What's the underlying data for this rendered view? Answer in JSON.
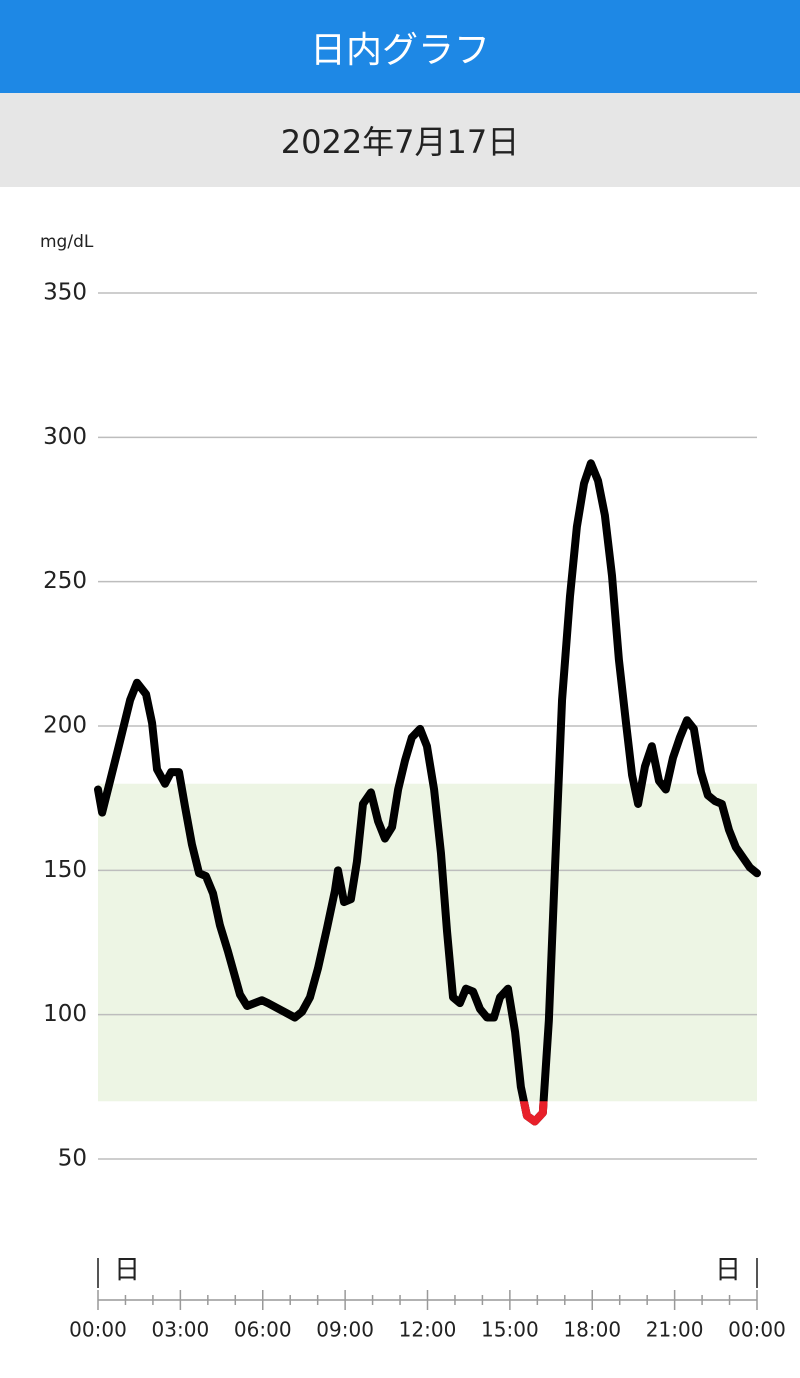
{
  "header": {
    "title": "日内グラフ",
    "date": "2022年7月17日"
  },
  "chart_data": {
    "type": "line",
    "y_label": "mg/dL",
    "x": [
      0,
      0.15,
      0.44,
      0.73,
      1.17,
      1.42,
      1.75,
      1.97,
      2.15,
      2.44,
      2.66,
      2.95,
      3.17,
      3.42,
      3.68,
      3.93,
      4.19,
      4.44,
      4.73,
      5.17,
      5.43,
      5.97,
      6.19,
      7.17,
      7.43,
      7.72,
      8.01,
      8.34,
      8.63,
      8.74,
      8.96,
      9.21,
      9.43,
      9.65,
      9.94,
      10.2,
      10.45,
      10.71,
      10.93,
      11.18,
      11.43,
      11.73,
      11.98,
      12.24,
      12.49,
      12.71,
      12.93,
      13.18,
      13.4,
      13.66,
      13.91,
      14.17,
      14.42,
      14.64,
      14.93,
      15.19,
      15.4,
      15.62,
      15.91,
      16.2,
      16.42,
      16.64,
      16.9,
      17.19,
      17.44,
      17.7,
      17.95,
      18.21,
      18.46,
      18.72,
      18.97,
      19.23,
      19.45,
      19.67,
      19.92,
      20.17,
      20.43,
      20.68,
      20.94,
      21.19,
      21.45,
      21.7,
      21.96,
      22.21,
      22.47,
      22.72,
      22.98,
      23.23,
      23.52,
      23.74,
      24
    ],
    "values": [
      178,
      170,
      181,
      192,
      209,
      215,
      211,
      201,
      185,
      180,
      184,
      184,
      172,
      159,
      149,
      148,
      142,
      131,
      122,
      107,
      103,
      105,
      104,
      99,
      101,
      106,
      116,
      130,
      143,
      150,
      139,
      140,
      153,
      173,
      177,
      167,
      161,
      165,
      178,
      188,
      196,
      199,
      193,
      178,
      156,
      129,
      106,
      104,
      109,
      108,
      102,
      99,
      99,
      106,
      109,
      94,
      75,
      65,
      63,
      66,
      98,
      150,
      209,
      245,
      269,
      284,
      291,
      285,
      273,
      252,
      223,
      201,
      183,
      173,
      186,
      193,
      181,
      178,
      189,
      196,
      202,
      199,
      184,
      176,
      174,
      173,
      164,
      158,
      154,
      151,
      149
    ],
    "color": "#000000",
    "low_color": "#e8202a",
    "target_range": [
      70,
      180
    ],
    "target_color": "#edf5e4",
    "ylim": [
      50,
      350
    ],
    "yticks": [
      50,
      100,
      150,
      200,
      250,
      300,
      350
    ],
    "grid": true,
    "xlim": [
      0,
      24
    ],
    "xticks": [
      {
        "value": 0,
        "label": "00:00"
      },
      {
        "value": 3,
        "label": "03:00"
      },
      {
        "value": 6,
        "label": "06:00"
      },
      {
        "value": 9,
        "label": "09:00"
      },
      {
        "value": 12,
        "label": "12:00"
      },
      {
        "value": 15,
        "label": "15:00"
      },
      {
        "value": 18,
        "label": "18:00"
      },
      {
        "value": 21,
        "label": "21:00"
      },
      {
        "value": 24,
        "label": "00:00"
      }
    ],
    "xminor": [
      1,
      2,
      4,
      5,
      7,
      8,
      10,
      11,
      13,
      14,
      16,
      17,
      19,
      20,
      22,
      23
    ],
    "date_markers": [
      {
        "value": 0,
        "label": "日"
      },
      {
        "value": 24,
        "label": "日"
      }
    ]
  }
}
